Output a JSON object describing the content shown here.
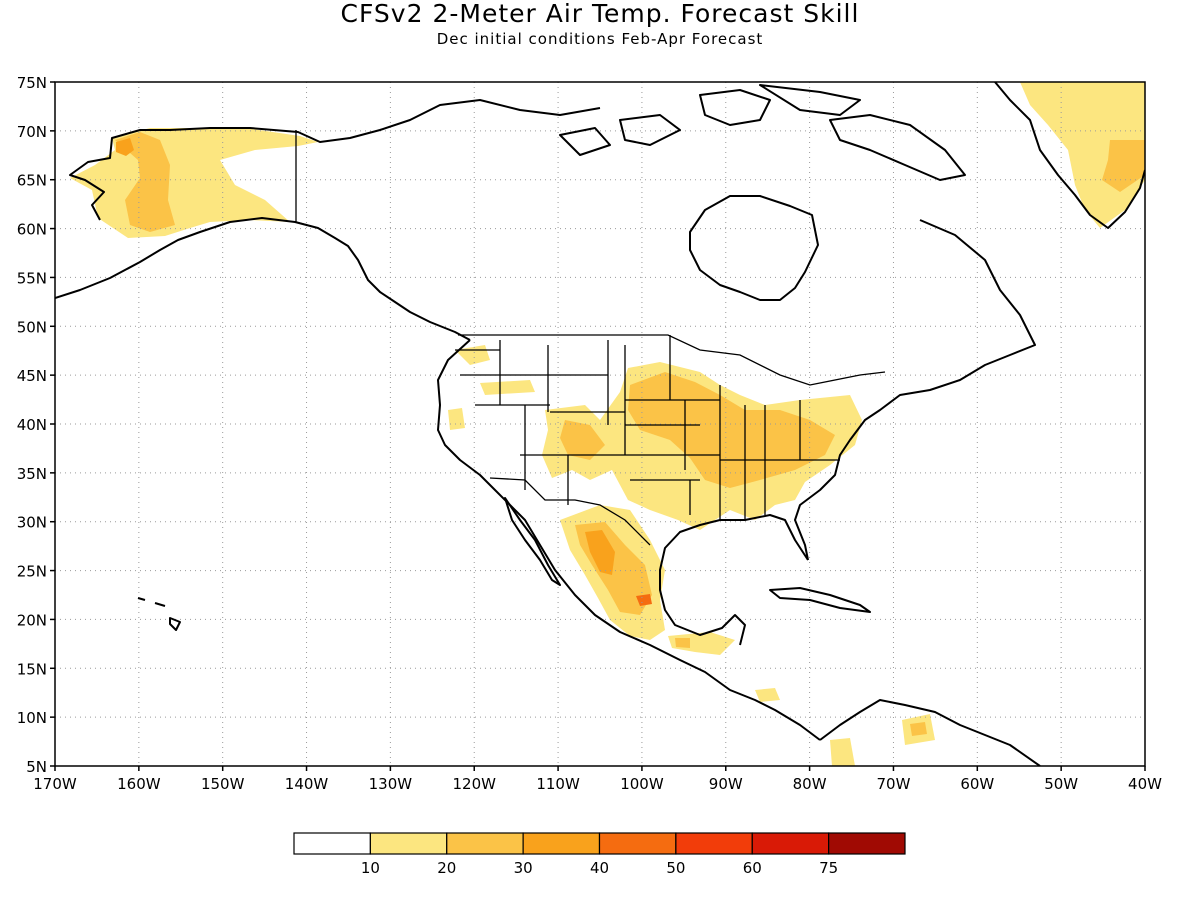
{
  "title": "CFSv2 2-Meter Air Temp. Forecast Skill",
  "subtitle": "Dec initial conditions  Feb-Apr Forecast",
  "map": {
    "lon_range": [
      -170,
      -40
    ],
    "lat_range": [
      5,
      75
    ],
    "lat_labels": [
      "75N",
      "70N",
      "65N",
      "60N",
      "55N",
      "50N",
      "45N",
      "40N",
      "35N",
      "30N",
      "25N",
      "20N",
      "15N",
      "10N",
      "5N"
    ],
    "lon_labels": [
      "170W",
      "160W",
      "150W",
      "140W",
      "130W",
      "120W",
      "110W",
      "100W",
      "90W",
      "80W",
      "70W",
      "60W",
      "50W",
      "40W"
    ],
    "grid": "dotted"
  },
  "colorbar": {
    "levels": [
      "10",
      "20",
      "30",
      "40",
      "50",
      "60",
      "75"
    ],
    "colors": [
      "#ffffff",
      "#fce680",
      "#fbc347",
      "#f9a21c",
      "#f56c10",
      "#f23d0a",
      "#d91a06",
      "#a00a03"
    ]
  },
  "skill_regions": [
    {
      "name": "alaska",
      "level": 20
    },
    {
      "name": "alaska-west",
      "level": 30
    },
    {
      "name": "greenland",
      "level": 20
    },
    {
      "name": "central-us",
      "level": 20
    },
    {
      "name": "midwest",
      "level": 30
    },
    {
      "name": "mexico",
      "level": 30
    },
    {
      "name": "mexico-core",
      "level": 40
    },
    {
      "name": "mexico-max",
      "level": 50
    }
  ]
}
